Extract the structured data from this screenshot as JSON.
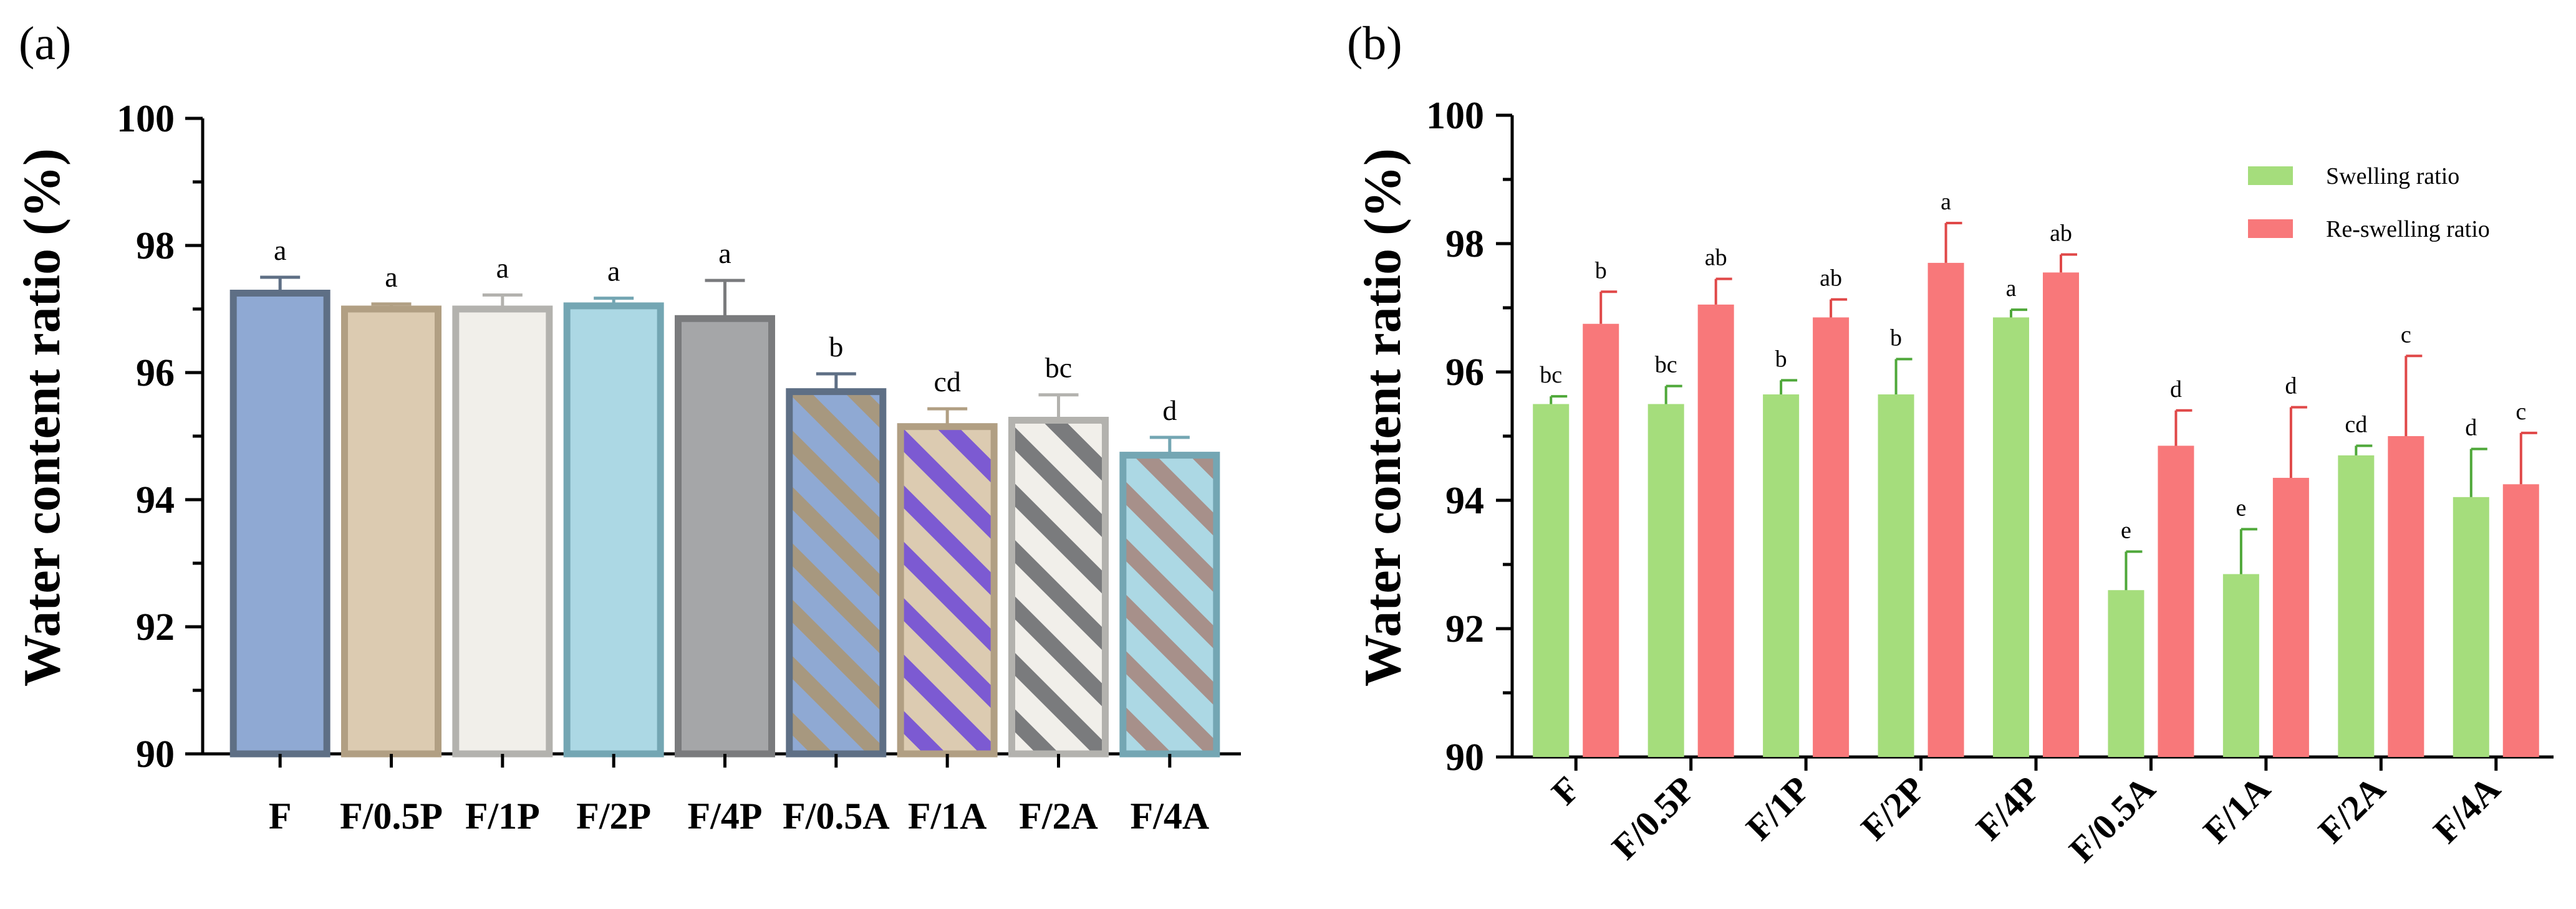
{
  "chart_data": [
    {
      "panel_label": "(a)",
      "type": "bar",
      "ylabel": "Water content ratio (%)",
      "ylim": [
        90,
        100
      ],
      "yticks": [
        90,
        92,
        94,
        96,
        98,
        100
      ],
      "ytick_labels": [
        "90",
        "92",
        "94",
        "96",
        "98",
        "100"
      ],
      "categories": [
        "F",
        "F/0.5P",
        "F/1P",
        "F/2P",
        "F/4P",
        "F/0.5A",
        "F/1A",
        "F/2A",
        "F/4A"
      ],
      "values": [
        97.25,
        97.0,
        97.0,
        97.05,
        96.85,
        95.7,
        95.15,
        95.25,
        94.7
      ],
      "errors": [
        0.25,
        0.08,
        0.22,
        0.12,
        0.6,
        0.28,
        0.28,
        0.4,
        0.28
      ],
      "significance": [
        "a",
        "a",
        "a",
        "a",
        "a",
        "b",
        "cd",
        "bc",
        "d"
      ],
      "colors": [
        "#8fa9d3",
        "#dccbb1",
        "#f1efea",
        "#acd8e4",
        "#a5a6a8",
        "#8fa9d3",
        "#dccbb1",
        "#f1efea",
        "#acd8e4"
      ],
      "border_colors": [
        "#5e6f85",
        "#b19f83",
        "#b3b2ae",
        "#74a6b3",
        "#7a7b7d",
        "#5e6f85",
        "#b19f83",
        "#b3b2ae",
        "#74a6b3"
      ],
      "stripe_colors": [
        null,
        null,
        null,
        null,
        null,
        "#a7987f",
        "#7c5ad2",
        "#7a7b7d",
        "#a7908a"
      ]
    },
    {
      "panel_label": "(b)",
      "type": "bar",
      "ylabel": "Water content ratio (%)",
      "ylim": [
        90,
        100
      ],
      "yticks": [
        90,
        92,
        94,
        96,
        98,
        100
      ],
      "ytick_labels": [
        "90",
        "92",
        "94",
        "96",
        "98",
        "100"
      ],
      "categories": [
        "F",
        "F/0.5P",
        "F/1P",
        "F/2P",
        "F/4P",
        "F/0.5A",
        "F/1A",
        "F/2A",
        "F/4A"
      ],
      "legend": [
        "Swelling ratio",
        "Re-swelling ratio"
      ],
      "series": [
        {
          "name": "Swelling ratio",
          "color": "#a5dd7c",
          "error_color": "#4fa83a",
          "values": [
            95.5,
            95.5,
            95.65,
            95.65,
            96.85,
            92.6,
            92.85,
            94.7,
            94.05
          ],
          "errors": [
            0.12,
            0.28,
            0.22,
            0.55,
            0.12,
            0.6,
            0.7,
            0.15,
            0.75
          ],
          "significance": [
            "bc",
            "bc",
            "b",
            "b",
            "a",
            "e",
            "e",
            "cd",
            "d"
          ]
        },
        {
          "name": "Re-swelling ratio",
          "color": "#f8787a",
          "error_color": "#e04848",
          "values": [
            96.75,
            97.05,
            96.85,
            97.7,
            97.55,
            94.85,
            94.35,
            95.0,
            94.25
          ],
          "errors": [
            0.5,
            0.4,
            0.28,
            0.62,
            0.28,
            0.55,
            1.1,
            1.25,
            0.8
          ],
          "significance": [
            "b",
            "ab",
            "ab",
            "a",
            "ab",
            "d",
            "d",
            "c",
            "c"
          ]
        }
      ]
    }
  ]
}
